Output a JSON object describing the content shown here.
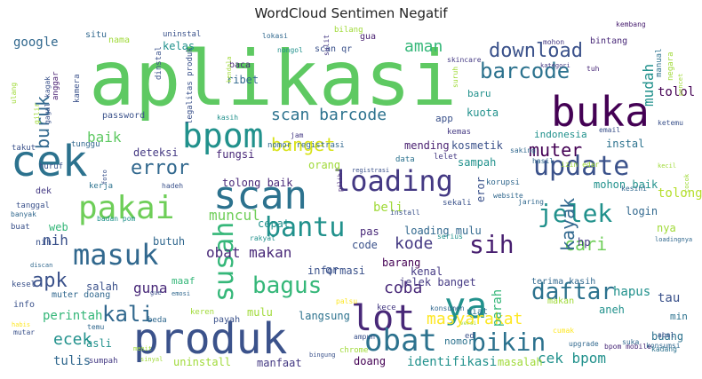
{
  "title": "WordCloud Sentimen Negatif",
  "chart_data": {
    "type": "wordcloud",
    "title": "WordCloud Sentimen Negatif",
    "words": [
      {
        "text": "aplikasi",
        "weight": 100,
        "color": "#5ec962"
      },
      {
        "text": "produk",
        "weight": 58,
        "color": "#3b528b"
      },
      {
        "text": "cek",
        "weight": 55,
        "color": "#2c728e"
      },
      {
        "text": "buka",
        "weight": 50,
        "color": "#440154"
      },
      {
        "text": "ya",
        "weight": 45,
        "color": "#21918c"
      },
      {
        "text": "bpom",
        "weight": 42,
        "color": "#21918c"
      },
      {
        "text": "scan",
        "weight": 40,
        "color": "#2c728e"
      },
      {
        "text": "pakai",
        "weight": 38,
        "color": "#6ece58"
      },
      {
        "text": "update",
        "weight": 36,
        "color": "#3b528b"
      },
      {
        "text": "masuk",
        "weight": 34,
        "color": "#31688e"
      },
      {
        "text": "lot",
        "weight": 33,
        "color": "#482878"
      },
      {
        "text": "obat",
        "weight": 33,
        "color": "#2c728e"
      },
      {
        "text": "loading",
        "weight": 32,
        "color": "#443983"
      },
      {
        "text": "susah",
        "weight": 30,
        "color": "#35b779"
      },
      {
        "text": "bantu",
        "weight": 29,
        "color": "#21918c"
      },
      {
        "text": "jelek",
        "weight": 28,
        "color": "#21918c"
      },
      {
        "text": "sih",
        "weight": 27,
        "color": "#481f70"
      },
      {
        "text": "daftar",
        "weight": 27,
        "color": "#2c728e"
      },
      {
        "text": "bikin",
        "weight": 26,
        "color": "#2c728e"
      },
      {
        "text": "bagus",
        "weight": 25,
        "color": "#35b779"
      },
      {
        "text": "barcode",
        "weight": 24,
        "color": "#2c728e"
      },
      {
        "text": "download",
        "weight": 24,
        "color": "#3b528b"
      },
      {
        "text": "kali",
        "weight": 24,
        "color": "#31688e"
      },
      {
        "text": "apk",
        "weight": 23,
        "color": "#3b528b"
      },
      {
        "text": "masyarakat",
        "weight": 22,
        "color": "#fde725"
      },
      {
        "text": "error",
        "weight": 22,
        "color": "#31688e"
      },
      {
        "text": "cari",
        "weight": 22,
        "color": "#6ece58"
      },
      {
        "text": "banget",
        "weight": 21,
        "color": "#d8e219"
      },
      {
        "text": "kayak",
        "weight": 21,
        "color": "#31688e"
      },
      {
        "text": "scan barcode",
        "weight": 20,
        "color": "#2c728e"
      },
      {
        "text": "aman",
        "weight": 20,
        "color": "#35b779"
      },
      {
        "text": "muter",
        "weight": 19,
        "color": "#440154"
      },
      {
        "text": "coba",
        "weight": 19,
        "color": "#482878"
      },
      {
        "text": "kode",
        "weight": 18,
        "color": "#443983"
      },
      {
        "text": "buruk",
        "weight": 18,
        "color": "#31688e"
      },
      {
        "text": "ecek",
        "weight": 17,
        "color": "#21918c"
      },
      {
        "text": "baik",
        "weight": 17,
        "color": "#5ec962"
      },
      {
        "text": "obat makan",
        "weight": 16,
        "color": "#482878"
      },
      {
        "text": "cek bpom",
        "weight": 16,
        "color": "#21918c"
      },
      {
        "text": "mudah",
        "weight": 15,
        "color": "#21918c"
      },
      {
        "text": "muncul",
        "weight": 15,
        "color": "#6ece58"
      },
      {
        "text": "beli",
        "weight": 15,
        "color": "#a0da39"
      },
      {
        "text": "nih",
        "weight": 15,
        "color": "#3b528b"
      },
      {
        "text": "guna",
        "weight": 15,
        "color": "#482878"
      },
      {
        "text": "tulis",
        "weight": 15,
        "color": "#31688e"
      },
      {
        "text": "perintah",
        "weight": 15,
        "color": "#35b779"
      },
      {
        "text": "parah",
        "weight": 14,
        "color": "#35b779"
      },
      {
        "text": "google",
        "weight": 13,
        "color": "#31688e"
      },
      {
        "text": "hapus",
        "weight": 13,
        "color": "#21918c"
      },
      {
        "text": "tolong",
        "weight": 13,
        "color": "#b5de2b"
      },
      {
        "text": "tolol",
        "weight": 13,
        "color": "#440154"
      },
      {
        "text": "tau",
        "weight": 13,
        "color": "#3b528b"
      },
      {
        "text": "kuota",
        "weight": 12,
        "color": "#21918c"
      },
      {
        "text": "instal",
        "weight": 12,
        "color": "#2c728e"
      },
      {
        "text": "cepat",
        "weight": 12,
        "color": "#21918c"
      },
      {
        "text": "eror",
        "weight": 12,
        "color": "#3b528b"
      },
      {
        "text": "identifikasi",
        "weight": 12,
        "color": "#21918c"
      },
      {
        "text": "mending",
        "weight": 12,
        "color": "#481f70"
      },
      {
        "text": "deteksi",
        "weight": 12,
        "color": "#443983"
      },
      {
        "text": "fungsi",
        "weight": 12,
        "color": "#482878"
      },
      {
        "text": "langsung",
        "weight": 11,
        "color": "#2c728e"
      },
      {
        "text": "informasi",
        "weight": 11,
        "color": "#3b528b"
      },
      {
        "text": "mulu",
        "weight": 11,
        "color": "#a0da39"
      },
      {
        "text": "barang",
        "weight": 11,
        "color": "#440154"
      },
      {
        "text": "uninstall",
        "weight": 11,
        "color": "#a0da39"
      },
      {
        "text": "manfaat",
        "weight": 11,
        "color": "#443983"
      },
      {
        "text": "doang",
        "weight": 11,
        "color": "#440154"
      },
      {
        "text": "masalah",
        "weight": 11,
        "color": "#a0da39"
      },
      {
        "text": "butuh",
        "weight": 10,
        "color": "#31688e"
      },
      {
        "text": "salah",
        "weight": 10,
        "color": "#3b528b"
      },
      {
        "text": "kelas",
        "weight": 10,
        "color": "#21918c"
      },
      {
        "text": "orang",
        "weight": 10,
        "color": "#a0da39"
      },
      {
        "text": "pas",
        "weight": 10,
        "color": "#482878"
      },
      {
        "text": "kamera",
        "weight": 9,
        "color": "#3b528b"
      },
      {
        "text": "anggar",
        "weight": 9,
        "color": "#481f70"
      },
      {
        "text": "ribet",
        "weight": 10,
        "color": "#31688e"
      },
      {
        "text": "sampah",
        "weight": 10,
        "color": "#21918c"
      },
      {
        "text": "kosmetik",
        "weight": 10,
        "color": "#3b528b"
      },
      {
        "text": "tolong baik",
        "weight": 10,
        "color": "#482878"
      },
      {
        "text": "mohon baik",
        "weight": 10,
        "color": "#21918c"
      },
      {
        "text": "loading mulu",
        "weight": 10,
        "color": "#31688e"
      },
      {
        "text": "jelek banget",
        "weight": 10,
        "color": "#443983"
      },
      {
        "text": "kenal",
        "weight": 10,
        "color": "#443983"
      },
      {
        "text": "login",
        "weight": 10,
        "color": "#31688e"
      },
      {
        "text": "aneh",
        "weight": 10,
        "color": "#21918c"
      },
      {
        "text": "buang",
        "weight": 10,
        "color": "#2c728e"
      },
      {
        "text": "nomor",
        "weight": 10,
        "color": "#2c728e"
      },
      {
        "text": "web",
        "weight": 10,
        "color": "#35b779"
      },
      {
        "text": "maaf",
        "weight": 9,
        "color": "#35b779"
      },
      {
        "text": "asli",
        "weight": 9,
        "color": "#21918c"
      },
      {
        "text": "app",
        "weight": 9,
        "color": "#3b528b"
      },
      {
        "text": "qr",
        "weight": 9,
        "color": "#3b528b"
      },
      {
        "text": "code",
        "weight": 9,
        "color": "#3b528b"
      },
      {
        "text": "hp",
        "weight": 9,
        "color": "#443983"
      },
      {
        "text": "nya",
        "weight": 9,
        "color": "#a0da39"
      },
      {
        "text": "min",
        "weight": 9,
        "color": "#2c728e"
      },
      {
        "text": "baru",
        "weight": 9,
        "color": "#21918c"
      },
      {
        "text": "indonesia",
        "weight": 9,
        "color": "#21918c"
      },
      {
        "text": "password",
        "weight": 8,
        "color": "#3b528b"
      },
      {
        "text": "scan qr",
        "weight": 8,
        "color": "#3b528b"
      },
      {
        "text": "baca",
        "weight": 8,
        "color": "#482878"
      },
      {
        "text": "nama",
        "weight": 8,
        "color": "#a0da39"
      },
      {
        "text": "situ",
        "weight": 8,
        "color": "#31688e"
      },
      {
        "text": "gua",
        "weight": 8,
        "color": "#481f70"
      },
      {
        "text": "muter doang",
        "weight": 8,
        "color": "#31688e"
      },
      {
        "text": "payah",
        "weight": 8,
        "color": "#3b528b"
      },
      {
        "text": "info",
        "weight": 8,
        "color": "#3b528b"
      },
      {
        "text": "dek",
        "weight": 8,
        "color": "#443983"
      },
      {
        "text": "nih",
        "weight": 8,
        "color": "#3b528b"
      },
      {
        "text": "kece",
        "weight": 8,
        "color": "#443983"
      },
      {
        "text": "niat",
        "weight": 8,
        "color": "#2c728e"
      },
      {
        "text": "terima kasih",
        "weight": 7,
        "color": "#31688e"
      },
      {
        "text": "makan",
        "weight": 8,
        "color": "#a0da39"
      },
      {
        "text": "bintang",
        "weight": 7,
        "color": "#482878"
      },
      {
        "text": "manual",
        "weight": 7,
        "color": "#2c728e"
      },
      {
        "text": "negara",
        "weight": 7,
        "color": "#a0da39"
      },
      {
        "text": "tunggu",
        "weight": 7,
        "color": "#31688e"
      },
      {
        "text": "takut",
        "weight": 7,
        "color": "#3b528b"
      },
      {
        "text": "kemas",
        "weight": 7,
        "color": "#443983"
      },
      {
        "text": "data",
        "weight": 7,
        "color": "#2c728e"
      },
      {
        "text": "korupsi",
        "weight": 7,
        "color": "#31688e"
      },
      {
        "text": "lelet",
        "weight": 7,
        "color": "#443983"
      },
      {
        "text": "kerja",
        "weight": 7,
        "color": "#2c728e"
      },
      {
        "text": "huruf",
        "weight": 7,
        "color": "#3b528b"
      },
      {
        "text": "tanggal",
        "weight": 7,
        "color": "#3b528b"
      },
      {
        "text": "banyak",
        "weight": 6,
        "color": "#31688e"
      },
      {
        "text": "buat",
        "weight": 7,
        "color": "#3b528b"
      },
      {
        "text": "kesel",
        "weight": 7,
        "color": "#3b528b"
      },
      {
        "text": "mutar",
        "weight": 6,
        "color": "#3b528b"
      },
      {
        "text": "sumpah",
        "weight": 7,
        "color": "#443983"
      },
      {
        "text": "gilir",
        "weight": 6,
        "color": "#a0da39"
      },
      {
        "text": "ulang",
        "weight": 6,
        "color": "#a0da39"
      },
      {
        "text": "gagal",
        "weight": 6,
        "color": "#3b528b"
      },
      {
        "text": "kagak",
        "weight": 6,
        "color": "#3b528b"
      },
      {
        "text": "uninstal",
        "weight": 7,
        "color": "#3b528b"
      },
      {
        "text": "lokasi",
        "weight": 6,
        "color": "#31688e"
      },
      {
        "text": "nongol",
        "weight": 6,
        "color": "#21918c"
      },
      {
        "text": "bilang",
        "weight": 7,
        "color": "#a0da39"
      },
      {
        "text": "sulit",
        "weight": 6,
        "color": "#443983"
      },
      {
        "text": "kembang",
        "weight": 6,
        "color": "#481f70"
      },
      {
        "text": "skincare",
        "weight": 6,
        "color": "#443983"
      },
      {
        "text": "tuh",
        "weight": 6,
        "color": "#482878"
      },
      {
        "text": "mohon",
        "weight": 6,
        "color": "#443983"
      },
      {
        "text": "kategori",
        "weight": 5,
        "color": "#443983"
      },
      {
        "text": "dinstal",
        "weight": 6,
        "color": "#3b528b"
      },
      {
        "text": "kendala",
        "weight": 5,
        "color": "#a0da39"
      },
      {
        "text": "legalitas produk",
        "weight": 7,
        "color": "#3b528b"
      },
      {
        "text": "suruh",
        "weight": 6,
        "color": "#a0da39"
      },
      {
        "text": "kasih",
        "weight": 6,
        "color": "#21918c"
      },
      {
        "text": "jam",
        "weight": 6,
        "color": "#443983"
      },
      {
        "text": "nomor registrasi",
        "weight": 7,
        "color": "#31688e"
      },
      {
        "text": "registrasi",
        "weight": 5,
        "color": "#3b528b"
      },
      {
        "text": "saking",
        "weight": 6,
        "color": "#31688e"
      },
      {
        "text": "hasil",
        "weight": 6,
        "color": "#31688e"
      },
      {
        "text": "izin edar",
        "weight": 6,
        "color": "#a0da39"
      },
      {
        "text": "email",
        "weight": 6,
        "color": "#3b528b"
      },
      {
        "text": "ketemu",
        "weight": 6,
        "color": "#3b528b"
      },
      {
        "text": "pencet",
        "weight": 5,
        "color": "#a0da39"
      },
      {
        "text": "kecil",
        "weight": 5,
        "color": "#a0da39"
      },
      {
        "text": "kesini",
        "weight": 6,
        "color": "#31688e"
      },
      {
        "text": "cocok",
        "weight": 5,
        "color": "#a0da39"
      },
      {
        "text": "website",
        "weight": 6,
        "color": "#31688e"
      },
      {
        "text": "jaring",
        "weight": 6,
        "color": "#31688e"
      },
      {
        "text": "sekali",
        "weight": 6,
        "color": "#3b528b"
      },
      {
        "text": "install",
        "weight": 6,
        "color": "#3b528b"
      },
      {
        "text": "pilih",
        "weight": 5,
        "color": "#482878"
      },
      {
        "text": "foto",
        "weight": 5,
        "color": "#3b528b"
      },
      {
        "text": "hadeh",
        "weight": 5,
        "color": "#3b528b"
      },
      {
        "text": "badan pom",
        "weight": 6,
        "color": "#21918c"
      },
      {
        "text": "rakyat",
        "weight": 6,
        "color": "#21918c"
      },
      {
        "text": "serius",
        "weight": 5,
        "color": "#21918c"
      },
      {
        "text": "loadingnya",
        "weight": 6,
        "color": "#31688e"
      },
      {
        "text": "discan",
        "weight": 5,
        "color": "#31688e"
      },
      {
        "text": "emosi",
        "weight": 5,
        "color": "#31688e"
      },
      {
        "text": "gue",
        "weight": 5,
        "color": "#3b528b"
      },
      {
        "text": "keren",
        "weight": 5,
        "color": "#a0da39"
      },
      {
        "text": "palsu",
        "weight": 7,
        "color": "#fde725"
      },
      {
        "text": "konsumen",
        "weight": 6,
        "color": "#31688e"
      },
      {
        "text": "versi",
        "weight": 7,
        "color": "#a0da39"
      },
      {
        "text": "cumak",
        "weight": 4,
        "color": "#fde725"
      },
      {
        "text": "upgrade",
        "weight": 6,
        "color": "#31688e"
      },
      {
        "text": "bpom mobile",
        "weight": 7,
        "color": "#482878"
      },
      {
        "text": "konsumsi",
        "weight": 5,
        "color": "#31688e"
      },
      {
        "text": "suka",
        "weight": 6,
        "color": "#31688e"
      },
      {
        "text": "abal",
        "weight": 7,
        "color": "#3b528b"
      },
      {
        "text": "kadang",
        "weight": 6,
        "color": "#2c728e"
      },
      {
        "text": "ampun",
        "weight": 6,
        "color": "#3b528b"
      },
      {
        "text": "chrome",
        "weight": 6,
        "color": "#a0da39"
      },
      {
        "text": "bingung",
        "weight": 6,
        "color": "#3b528b"
      },
      {
        "text": "ed",
        "weight": 7,
        "color": "#3b528b"
      },
      {
        "text": "habis",
        "weight": 5,
        "color": "#fde725"
      },
      {
        "text": "temu",
        "weight": 7,
        "color": "#31688e"
      },
      {
        "text": "menit",
        "weight": 5,
        "color": "#a0da39"
      },
      {
        "text": "sinyal",
        "weight": 6,
        "color": "#a0da39"
      },
      {
        "text": "beda",
        "weight": 5,
        "color": "#31688e"
      },
      {
        "text": "menu",
        "weight": 5,
        "color": "#3b528b"
      },
      {
        "text": "bian",
        "weight": 6,
        "color": "#3b528b"
      }
    ]
  }
}
